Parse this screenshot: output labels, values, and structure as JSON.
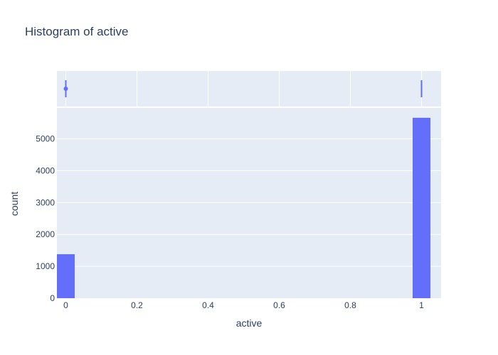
{
  "chart_data": {
    "type": "histogram",
    "title": "Histogram of active",
    "xlabel": "active",
    "ylabel": "count",
    "xlim": [
      -0.025,
      1.055
    ],
    "ylim": [
      0,
      5970
    ],
    "x_ticks": [
      0,
      0.2,
      0.4,
      0.6,
      0.8,
      1
    ],
    "x_tick_labels": [
      "0",
      "0.2",
      "0.4",
      "0.6",
      "0.8",
      "1"
    ],
    "y_ticks": [
      0,
      1000,
      2000,
      3000,
      4000,
      5000
    ],
    "y_tick_labels": [
      "0",
      "1000",
      "2000",
      "3000",
      "4000",
      "5000"
    ],
    "bins": [
      {
        "x0": -0.025,
        "x1": 0.025,
        "count": 1380
      },
      {
        "x0": 0.975,
        "x1": 1.025,
        "count": 5660
      }
    ],
    "marginal": {
      "type": "rug",
      "points": [
        0,
        1
      ]
    },
    "color": "#636efa",
    "plot_bgcolor": "#e5ecf6",
    "gridcolor": "#ffffff",
    "grid": true,
    "legend": false
  }
}
